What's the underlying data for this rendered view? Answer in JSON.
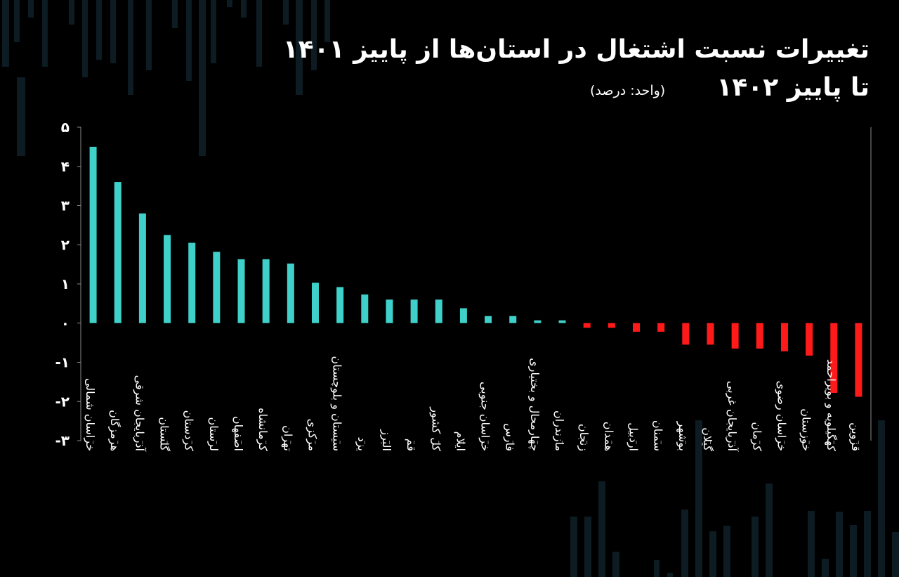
{
  "title_line1": "تغییرات نسبت اشتغال در استان‌ها از پاییز ۱۴۰۱",
  "title_line2": "تا پاییز ۱۴۰۲",
  "unit": "(واحد: درصد)",
  "colors": {
    "positive": "#3fd0c9",
    "negative": "#ff1a1a",
    "axis": "#8a8a8a",
    "text": "#ffffff",
    "background": "#000000"
  },
  "chart_data": {
    "type": "bar",
    "categories": [
      "خراسان شمالی",
      "هرمزگان",
      "آذربایجان شرقی",
      "گلستان",
      "کردستان",
      "لرستان",
      "اصفهان",
      "کرمانشاه",
      "تهران",
      "مرکزی",
      "سیستان و بلوچستان",
      "یزد",
      "البرز",
      "قم",
      "کل کشور",
      "ایلام",
      "خراسان جنوبی",
      "فارس",
      "چهارمحال و بختیاری",
      "مازندران",
      "زنجان",
      "همدان",
      "اردبیل",
      "سمنان",
      "بوشهر",
      "گیلان",
      "آذربایجان غربی",
      "کرمان",
      "خراسان رضوی",
      "خوزستان",
      "کهگیلویه و بویراحمد",
      "قزوین"
    ],
    "values": [
      4.5,
      3.6,
      2.8,
      2.25,
      2.05,
      1.82,
      1.63,
      1.63,
      1.52,
      1.03,
      0.92,
      0.73,
      0.6,
      0.6,
      0.6,
      0.38,
      0.18,
      0.18,
      0.07,
      0.07,
      -0.12,
      -0.12,
      -0.22,
      -0.22,
      -0.55,
      -0.55,
      -0.65,
      -0.65,
      -0.72,
      -0.83,
      -1.78,
      -1.88
    ],
    "ylim": [
      -3,
      5
    ],
    "yticks": [
      5,
      4,
      3,
      2,
      1,
      0,
      -1,
      -2,
      -3
    ],
    "ytick_labels": [
      "۵",
      "۴",
      "۳",
      "۲",
      "۱",
      "۰",
      "-۱",
      "-۲",
      "-۳"
    ],
    "grid": false
  }
}
